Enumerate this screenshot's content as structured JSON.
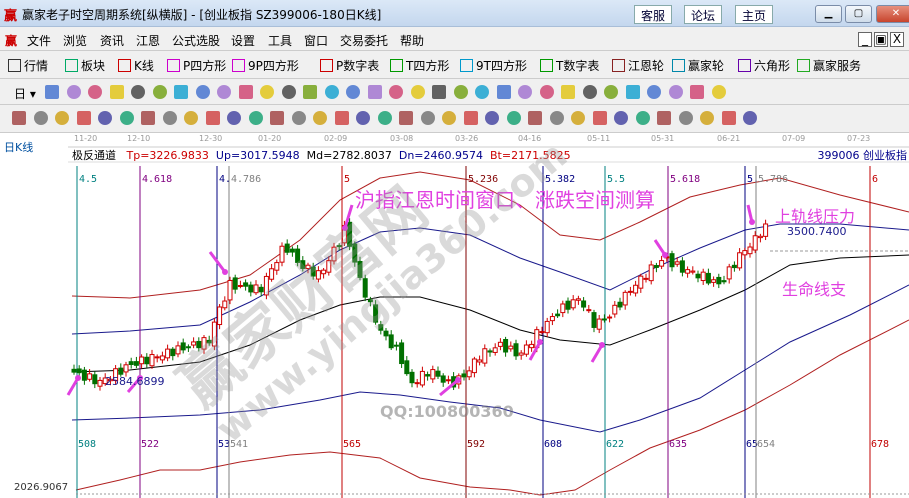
{
  "window": {
    "title": "赢家老子时空周期系统[纵横版] - [创业板指  SZ399006-180日K线]",
    "logo": "赢",
    "links": [
      "客服",
      "论坛",
      "主页"
    ],
    "controls": [
      "minimize",
      "maximize",
      "close"
    ]
  },
  "menu": {
    "logo": "赢",
    "items": [
      "文件",
      "浏览",
      "资讯",
      "江恩",
      "公式选股",
      "设置",
      "工具",
      "窗口",
      "交易委托",
      "帮助"
    ]
  },
  "toolbar1": [
    {
      "label": "行情",
      "icon": "grid-icon"
    },
    {
      "label": "板块",
      "icon": "blocks-icon"
    },
    {
      "label": "K线",
      "icon": "kline-icon"
    },
    {
      "label": "P四方形",
      "icon": "ps-icon"
    },
    {
      "label": "9P四方形",
      "icon": "p9-icon"
    },
    {
      "label": "P数字表",
      "icon": "pn-icon"
    },
    {
      "label": "T四方形",
      "icon": "ts-icon"
    },
    {
      "label": "9T四方形",
      "icon": "t9-icon"
    },
    {
      "label": "T数字表",
      "icon": "tn-icon"
    },
    {
      "label": "江恩轮",
      "icon": "wheel-icon"
    },
    {
      "label": "赢家轮",
      "icon": "big-wheel-icon"
    },
    {
      "label": "六角形",
      "icon": "hexagon-icon"
    },
    {
      "label": "赢家服务",
      "icon": "dollar-icon"
    }
  ],
  "toolbar2": {
    "period": "日"
  },
  "side_label": "日K线",
  "indicator": {
    "name": "极反通道",
    "tp": "Tp=3226.9833",
    "up": "Up=3017.5948",
    "md": "Md=2782.8037",
    "dn": "Dn=2460.9574",
    "bt": "Bt=2171.5825",
    "symbol": "399006 创业板指"
  },
  "chart_data": {
    "type": "candlestick",
    "x_ticks": [
      "11-20",
      "12-10",
      "12-30",
      "01-20",
      "02-09",
      "03-08",
      "03-26",
      "04-16",
      "05-11",
      "05-31",
      "06-21",
      "07-09",
      "07-23"
    ],
    "price_path": [
      2710,
      2654,
      2750,
      2806,
      2891,
      3004,
      3202,
      3173,
      3427,
      3314,
      3258,
      3456,
      3523,
      3230,
      2947,
      2806,
      2637,
      2721,
      2637,
      2693,
      2806,
      2863,
      2806,
      2947,
      3060,
      3128,
      2976,
      3032,
      3173,
      3286,
      3354,
      3297,
      3258,
      3202,
      3371,
      3456,
      3540,
      3427
    ],
    "y_min_label": "2026.9067",
    "price_labels": [
      "2584.6899",
      "3500.7400"
    ],
    "time_windows": [
      {
        "ratio": "4.5",
        "count": "508",
        "color": "#008080"
      },
      {
        "ratio": "4.618",
        "count": "522",
        "color": "#800080"
      },
      {
        "ratio": "4.",
        "count": "53",
        "color": "#000080"
      },
      {
        "ratio": "4.786",
        "count": "541",
        "color": "#808080"
      },
      {
        "ratio": "5",
        "count": "565",
        "color": "#c00000"
      },
      {
        "ratio": "5.236",
        "count": "592",
        "color": "#800000"
      },
      {
        "ratio": "5.382",
        "count": "608",
        "color": "#000080"
      },
      {
        "ratio": "5.5",
        "count": "622",
        "color": "#008080"
      },
      {
        "ratio": "5.618",
        "count": "635",
        "color": "#800080"
      },
      {
        "ratio": "5.",
        "count": "65",
        "color": "#000080"
      },
      {
        "ratio": "5.786",
        "count": "654",
        "color": "#808080"
      },
      {
        "ratio": "6",
        "count": "678",
        "color": "#c00000"
      }
    ],
    "colors": {
      "up": "#d00000",
      "down": "#007000",
      "upper_band": "#b02020",
      "mid_band": "#1a1a8c",
      "center": "#000000",
      "annotation": "#e040e0"
    }
  },
  "annotations": {
    "headline": "沪指江恩时间窗口、涨跌空间测算",
    "resistance": "上轨线压力",
    "support": "生命线支"
  },
  "watermark": {
    "text": "赢家财富网",
    "url": "www.yingjia360.com",
    "qq": "QQ:100800360"
  }
}
